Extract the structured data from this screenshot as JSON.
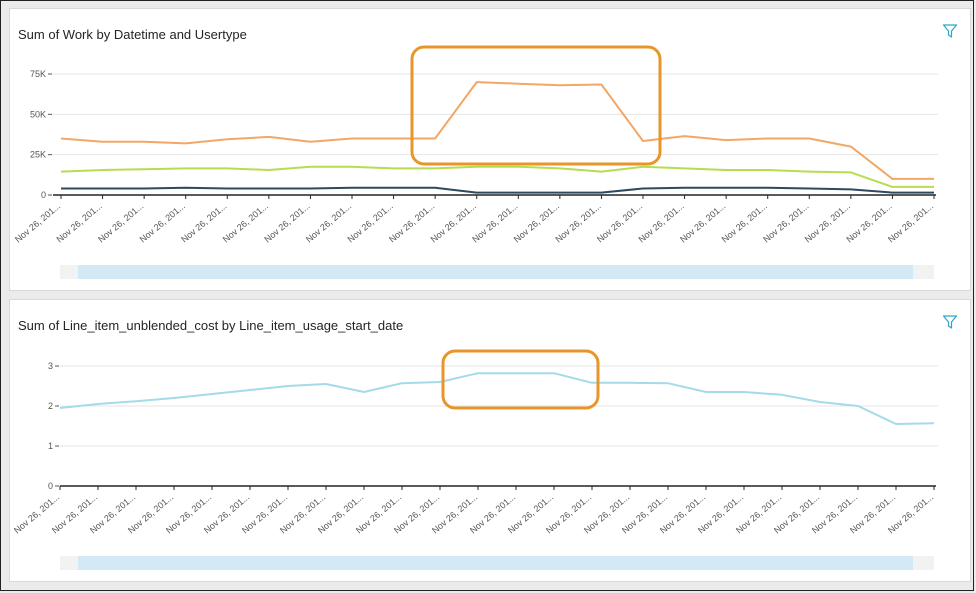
{
  "chart_data": [
    {
      "type": "line",
      "title": "Sum of Work by Datetime and Usertype",
      "y_ticks": [
        "0",
        "25K",
        "50K",
        "75K"
      ],
      "ylim": [
        0,
        75000
      ],
      "y_tick_values": [
        0,
        25000,
        50000,
        75000
      ],
      "x_tick_label": "Nov 26, 201...",
      "n_points": 22,
      "series": [
        {
          "color": "#f2a766",
          "values": [
            35000,
            33000,
            33000,
            32000,
            34500,
            36000,
            33000,
            35000,
            35000,
            35000,
            70000,
            69000,
            68000,
            68500,
            33500,
            36500,
            34000,
            35000,
            35000,
            30000,
            10000,
            10000
          ]
        },
        {
          "color": "#b8dc50",
          "values": [
            14500,
            15500,
            16000,
            16500,
            16500,
            15500,
            17500,
            17500,
            16500,
            16500,
            17500,
            17500,
            16500,
            14500,
            17500,
            16500,
            15500,
            15500,
            14500,
            14000,
            5000,
            5000
          ]
        },
        {
          "color": "#2d4a5e",
          "values": [
            4000,
            4000,
            4000,
            4500,
            4000,
            4000,
            4000,
            4500,
            4500,
            4500,
            1500,
            1500,
            1500,
            1500,
            4000,
            4500,
            4500,
            4500,
            4000,
            3500,
            1500,
            1500
          ]
        }
      ],
      "highlight_color": "#e8962a"
    },
    {
      "type": "line",
      "title": "Sum of Line_item_unblended_cost by Line_item_usage_start_date",
      "y_ticks": [
        "0",
        "1",
        "2",
        "3"
      ],
      "ylim": [
        0,
        3
      ],
      "y_tick_values": [
        0,
        1,
        2,
        3
      ],
      "x_tick_label": "Nov 26, 201...",
      "n_points": 24,
      "series": [
        {
          "color": "#a3dbe9",
          "values": [
            1.95,
            2.05,
            2.12,
            2.2,
            2.3,
            2.4,
            2.5,
            2.55,
            2.35,
            2.57,
            2.6,
            2.82,
            2.82,
            2.82,
            2.58,
            2.58,
            2.57,
            2.35,
            2.35,
            2.28,
            2.1,
            2.0,
            1.55,
            1.57
          ]
        }
      ],
      "highlight_color": "#e8962a"
    }
  ],
  "colors": {
    "axis": "#252423",
    "gridline": "#e6e6e6",
    "filter_icon": "#2aa7c9"
  }
}
